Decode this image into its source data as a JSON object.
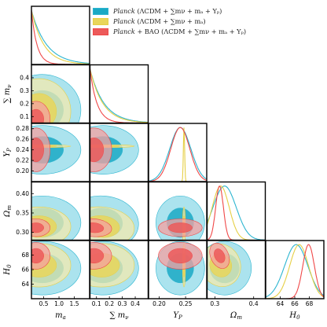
{
  "chart_data": {
    "type": "triangle-posterior",
    "parameters": [
      {
        "symbol": "m_a",
        "label": "m",
        "sub": "a",
        "range": [
          0.1,
          2.0
        ],
        "ticks": [
          "0.5",
          "1.0",
          "1.5"
        ],
        "tick_values": [
          0.5,
          1.0,
          1.5
        ]
      },
      {
        "symbol": "sum_mnu",
        "label": "∑ m",
        "sub": "ν",
        "range": [
          0.05,
          0.5
        ],
        "ticks": [
          "0.1",
          "0.2",
          "0.3",
          "0.4"
        ],
        "tick_values": [
          0.1,
          0.2,
          0.3,
          0.4
        ]
      },
      {
        "symbol": "Y_P",
        "label": "Y",
        "sub": "P",
        "range": [
          0.18,
          0.29
        ],
        "ticks": [
          "0.20",
          "0.25"
        ],
        "tick_values": [
          0.2,
          0.25
        ]
      },
      {
        "symbol": "Omega_m",
        "label": "Ω",
        "sub": "m",
        "range": [
          0.28,
          0.43
        ],
        "ticks": [
          "0.3",
          "0.4"
        ],
        "tick_values": [
          0.3,
          0.4
        ]
      },
      {
        "symbol": "H_0",
        "label": "H",
        "sub": "0",
        "range": [
          62.0,
          70.0
        ],
        "ticks": [
          "64",
          "66",
          "68"
        ],
        "tick_values": [
          64,
          66,
          68
        ]
      }
    ],
    "y_axes": {
      "1": {
        "ticks": [
          "0.1",
          "0.2",
          "0.3",
          "0.4"
        ],
        "tick_values": [
          0.1,
          0.2,
          0.3,
          0.4
        ]
      },
      "2": {
        "ticks": [
          "0.20",
          "0.22",
          "0.24",
          "0.26",
          "0.28"
        ],
        "tick_values": [
          0.2,
          0.22,
          0.24,
          0.26,
          0.28
        ]
      },
      "3": {
        "ticks": [
          "0.30",
          "0.35",
          "0.40"
        ],
        "tick_values": [
          0.3,
          0.35,
          0.4
        ]
      },
      "4": {
        "ticks": [
          "64",
          "66",
          "68"
        ],
        "tick_values": [
          64,
          66,
          68
        ]
      }
    },
    "series": [
      {
        "name_italic": "Planck",
        "name_rest": " (ΛCDM + ∑mν + mₐ + Yₚ)",
        "color": "#2cb5d0",
        "fill": "#8fd9e8",
        "fill_dark": "#1aa9c4",
        "means": [
          0.45,
          0.15,
          0.24,
          0.325,
          66.2
        ],
        "sigmas": [
          0.55,
          0.12,
          0.02,
          0.03,
          1.6
        ]
      },
      {
        "name_italic": "Planck",
        "name_rest": " (ΛCDM + ∑mν + mₐ)",
        "color": "#e6cf45",
        "fill": "#f3e9ad",
        "fill_dark": "#e9d65a",
        "means": [
          0.35,
          0.14,
          0.247,
          0.315,
          66.6
        ],
        "sigmas": [
          0.45,
          0.11,
          0.0012,
          0.022,
          1.3
        ]
      },
      {
        "name_italic": "Planck",
        "name_rest": " + BAO (ΛCDM + ∑mν + mₐ + Yₚ)",
        "color": "#f04848",
        "fill": "#f4a0a0",
        "fill_dark": "#ec5a5a",
        "means": [
          0.25,
          0.08,
          0.24,
          0.312,
          67.9
        ],
        "sigmas": [
          0.2,
          0.06,
          0.018,
          0.01,
          0.8
        ]
      }
    ]
  }
}
